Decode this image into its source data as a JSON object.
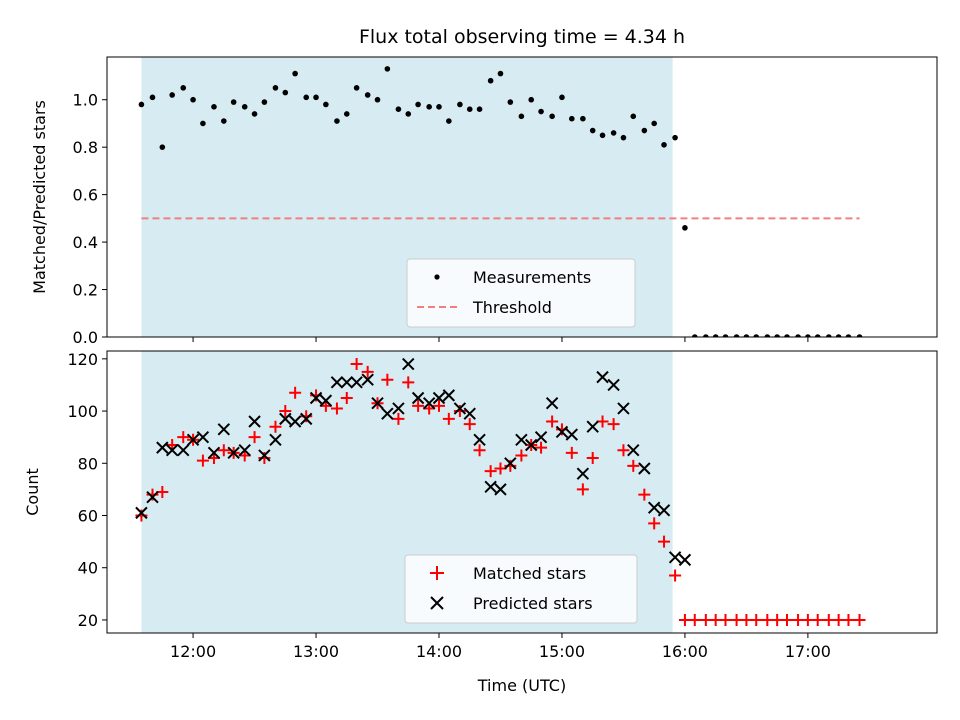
{
  "chart_data": [
    {
      "type": "scatter",
      "title": "Flux total observing time = 4.34 h",
      "xlabel": "",
      "ylabel": "Matched/Predicted stars",
      "ylim": [
        0,
        1.18
      ],
      "yticks": [
        "0.0",
        "0.2",
        "0.4",
        "0.6",
        "0.8",
        "1.0"
      ],
      "ytick_values": [
        0,
        0.2,
        0.4,
        0.6,
        0.8,
        1.0
      ],
      "xlim_hours": [
        11.3,
        18.05
      ],
      "xtick_values_hours": [
        12,
        13,
        14,
        15,
        16,
        17
      ],
      "shaded_interval_hours": [
        11.58,
        15.9
      ],
      "shade_color": "#add8e6",
      "legend_position": "lower-center",
      "series": [
        {
          "name": "Measurements",
          "marker": "dot",
          "color": "#000000",
          "x": [
            11.58,
            11.67,
            11.75,
            11.83,
            11.92,
            12.0,
            12.08,
            12.17,
            12.25,
            12.33,
            12.42,
            12.5,
            12.58,
            12.67,
            12.75,
            12.83,
            12.92,
            13.0,
            13.08,
            13.17,
            13.25,
            13.33,
            13.42,
            13.5,
            13.58,
            13.67,
            13.75,
            13.83,
            13.92,
            14.0,
            14.08,
            14.17,
            14.25,
            14.33,
            14.42,
            14.5,
            14.58,
            14.67,
            14.75,
            14.83,
            14.92,
            15.0,
            15.08,
            15.17,
            15.25,
            15.33,
            15.42,
            15.5,
            15.58,
            15.67,
            15.75,
            15.83,
            15.92,
            16.0,
            16.08,
            16.17,
            16.25,
            16.33,
            16.42,
            16.5,
            16.58,
            16.67,
            16.75,
            16.83,
            16.92,
            17.0,
            17.08,
            17.17,
            17.25,
            17.33,
            17.42
          ],
          "y": [
            0.98,
            1.01,
            0.8,
            1.02,
            1.05,
            1.0,
            0.9,
            0.97,
            0.91,
            0.99,
            0.97,
            0.94,
            0.99,
            1.05,
            1.03,
            1.11,
            1.01,
            1.01,
            0.98,
            0.91,
            0.94,
            1.05,
            1.02,
            1.0,
            1.13,
            0.96,
            0.94,
            0.98,
            0.97,
            0.97,
            0.91,
            0.98,
            0.96,
            0.96,
            1.08,
            1.11,
            0.99,
            0.93,
            1.0,
            0.95,
            0.93,
            1.01,
            0.92,
            0.92,
            0.87,
            0.85,
            0.86,
            0.84,
            0.93,
            0.87,
            0.9,
            0.81,
            0.84,
            0.46,
            0.0,
            0.0,
            0.0,
            0.0,
            0.0,
            0.0,
            0.0,
            0.0,
            0.0,
            0.0,
            0.0,
            0.0,
            0.0,
            0.0,
            0.0,
            0.0,
            0.0
          ]
        },
        {
          "name": "Threshold",
          "style": "dashed-line",
          "color": "#f08080",
          "x": [
            11.58,
            17.42
          ],
          "y": [
            0.5,
            0.5
          ]
        }
      ]
    },
    {
      "type": "scatter",
      "title": "",
      "xlabel": "Time (UTC)",
      "ylabel": "Count",
      "ylim": [
        15,
        123
      ],
      "yticks": [
        "20",
        "40",
        "60",
        "80",
        "100",
        "120"
      ],
      "ytick_values": [
        20,
        40,
        60,
        80,
        100,
        120
      ],
      "xlim_hours": [
        11.3,
        18.05
      ],
      "xticks": [
        "12:00",
        "13:00",
        "14:00",
        "15:00",
        "16:00",
        "17:00"
      ],
      "xtick_values_hours": [
        12,
        13,
        14,
        15,
        16,
        17
      ],
      "shaded_interval_hours": [
        11.58,
        15.9
      ],
      "shade_color": "#add8e6",
      "legend_position": "lower-center",
      "series": [
        {
          "name": "Matched stars",
          "marker": "plus",
          "color": "#ff0000",
          "x": [
            11.58,
            11.67,
            11.75,
            11.83,
            11.92,
            12.0,
            12.08,
            12.17,
            12.25,
            12.33,
            12.42,
            12.5,
            12.58,
            12.67,
            12.75,
            12.83,
            12.92,
            13.0,
            13.08,
            13.17,
            13.25,
            13.33,
            13.42,
            13.5,
            13.58,
            13.67,
            13.75,
            13.83,
            13.92,
            14.0,
            14.08,
            14.17,
            14.25,
            14.33,
            14.42,
            14.5,
            14.58,
            14.67,
            14.75,
            14.83,
            14.92,
            15.0,
            15.08,
            15.17,
            15.25,
            15.33,
            15.42,
            15.5,
            15.58,
            15.67,
            15.75,
            15.83,
            15.92,
            16.0,
            16.08,
            16.17,
            16.25,
            16.33,
            16.42,
            16.5,
            16.58,
            16.67,
            16.75,
            16.83,
            16.92,
            17.0,
            17.08,
            17.17,
            17.25,
            17.33,
            17.42
          ],
          "y": [
            60,
            68,
            69,
            87,
            90,
            89,
            81,
            82,
            85,
            84,
            83,
            90,
            82,
            94,
            100,
            107,
            98,
            106,
            102,
            101,
            105,
            118,
            115,
            103,
            112,
            97,
            111,
            102,
            101,
            102,
            97,
            100,
            95,
            85,
            77,
            78,
            79,
            83,
            87,
            86,
            96,
            93,
            84,
            70,
            82,
            96,
            95,
            85,
            79,
            68,
            57,
            50,
            37,
            20,
            20,
            20,
            20,
            20,
            20,
            20,
            20,
            20,
            20,
            20,
            20,
            20,
            20,
            20,
            20,
            20,
            20
          ]
        },
        {
          "name": "Predicted stars",
          "marker": "x",
          "color": "#000000",
          "x": [
            11.58,
            11.67,
            11.75,
            11.83,
            11.92,
            12.0,
            12.08,
            12.17,
            12.25,
            12.33,
            12.42,
            12.5,
            12.58,
            12.67,
            12.75,
            12.83,
            12.92,
            13.0,
            13.08,
            13.17,
            13.25,
            13.33,
            13.42,
            13.5,
            13.58,
            13.67,
            13.75,
            13.83,
            13.92,
            14.0,
            14.08,
            14.17,
            14.25,
            14.33,
            14.42,
            14.5,
            14.58,
            14.67,
            14.75,
            14.83,
            14.92,
            15.0,
            15.08,
            15.17,
            15.25,
            15.33,
            15.42,
            15.5,
            15.58,
            15.67,
            15.75,
            15.83,
            15.92,
            16.0
          ],
          "y": [
            61,
            67,
            86,
            85,
            85,
            89,
            90,
            84,
            93,
            84,
            85,
            96,
            83,
            89,
            97,
            96,
            97,
            105,
            104,
            111,
            111,
            111,
            112,
            103,
            99,
            101,
            118,
            105,
            103,
            105,
            106,
            101,
            99,
            89,
            71,
            70,
            80,
            89,
            87,
            90,
            103,
            92,
            91,
            76,
            94,
            113,
            110,
            101,
            85,
            78,
            63,
            62,
            44,
            43
          ]
        }
      ]
    }
  ]
}
